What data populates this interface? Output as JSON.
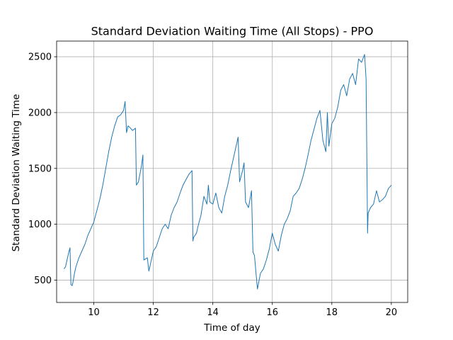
{
  "chart_data": {
    "type": "line",
    "title": "Standard Deviation Waiting Time (All Stops) - PPO",
    "xlabel": "Time of day",
    "ylabel": "Standard Deviation Waiting Time",
    "xlim": [
      8.75,
      20.55
    ],
    "ylim": [
      300,
      2640
    ],
    "xticks": [
      10,
      12,
      14,
      16,
      18,
      20
    ],
    "yticks": [
      500,
      1000,
      1500,
      2000,
      2500
    ],
    "grid": true,
    "legend": "none",
    "series": [
      {
        "color": "#1f77b4",
        "x": [
          9.0,
          9.05,
          9.1,
          9.15,
          9.2,
          9.23,
          9.27,
          9.3,
          9.35,
          9.4,
          9.5,
          9.6,
          9.7,
          9.8,
          9.9,
          10.0,
          10.1,
          10.2,
          10.3,
          10.4,
          10.5,
          10.6,
          10.7,
          10.8,
          10.9,
          11.0,
          11.05,
          11.1,
          11.15,
          11.2,
          11.3,
          11.4,
          11.43,
          11.5,
          11.6,
          11.65,
          11.68,
          11.8,
          11.85,
          11.9,
          12.0,
          12.1,
          12.2,
          12.3,
          12.4,
          12.5,
          12.6,
          12.7,
          12.8,
          12.9,
          13.0,
          13.1,
          13.2,
          13.3,
          13.33,
          13.35,
          13.45,
          13.5,
          13.6,
          13.7,
          13.8,
          13.85,
          13.9,
          14.0,
          14.1,
          14.2,
          14.3,
          14.4,
          14.5,
          14.6,
          14.7,
          14.8,
          14.85,
          14.9,
          15.0,
          15.05,
          15.1,
          15.2,
          15.3,
          15.35,
          15.4,
          15.5,
          15.6,
          15.7,
          15.8,
          15.9,
          16.0,
          16.1,
          16.2,
          16.3,
          16.4,
          16.5,
          16.6,
          16.7,
          16.8,
          16.9,
          17.0,
          17.1,
          17.2,
          17.3,
          17.4,
          17.5,
          17.6,
          17.7,
          17.8,
          17.85,
          17.9,
          18.0,
          18.1,
          18.2,
          18.3,
          18.4,
          18.5,
          18.6,
          18.7,
          18.8,
          18.9,
          19.0,
          19.1,
          19.15,
          19.2,
          19.22,
          19.3,
          19.4,
          19.5,
          19.6,
          19.7,
          19.8,
          19.9,
          20.0
        ],
        "y": [
          600,
          620,
          680,
          740,
          790,
          460,
          450,
          480,
          560,
          620,
          700,
          760,
          820,
          900,
          960,
          1020,
          1120,
          1220,
          1350,
          1500,
          1650,
          1780,
          1880,
          1960,
          1980,
          2020,
          2100,
          1820,
          1880,
          1870,
          1840,
          1860,
          1350,
          1380,
          1520,
          1620,
          680,
          700,
          580,
          640,
          760,
          800,
          880,
          960,
          1000,
          960,
          1080,
          1150,
          1200,
          1280,
          1350,
          1400,
          1450,
          1480,
          850,
          880,
          920,
          980,
          1080,
          1250,
          1180,
          1350,
          1200,
          1180,
          1280,
          1150,
          1100,
          1250,
          1350,
          1480,
          1600,
          1720,
          1780,
          1380,
          1480,
          1550,
          1200,
          1150,
          1300,
          750,
          720,
          420,
          560,
          600,
          680,
          780,
          920,
          820,
          760,
          900,
          1000,
          1050,
          1120,
          1250,
          1280,
          1320,
          1400,
          1500,
          1620,
          1750,
          1850,
          1950,
          2020,
          1750,
          1650,
          2000,
          1700,
          1900,
          1950,
          2050,
          2200,
          2250,
          2150,
          2300,
          2350,
          2250,
          2480,
          2450,
          2520,
          2300,
          920,
          1100,
          1150,
          1180,
          1300,
          1200,
          1220,
          1250,
          1320,
          1350
        ]
      }
    ]
  }
}
